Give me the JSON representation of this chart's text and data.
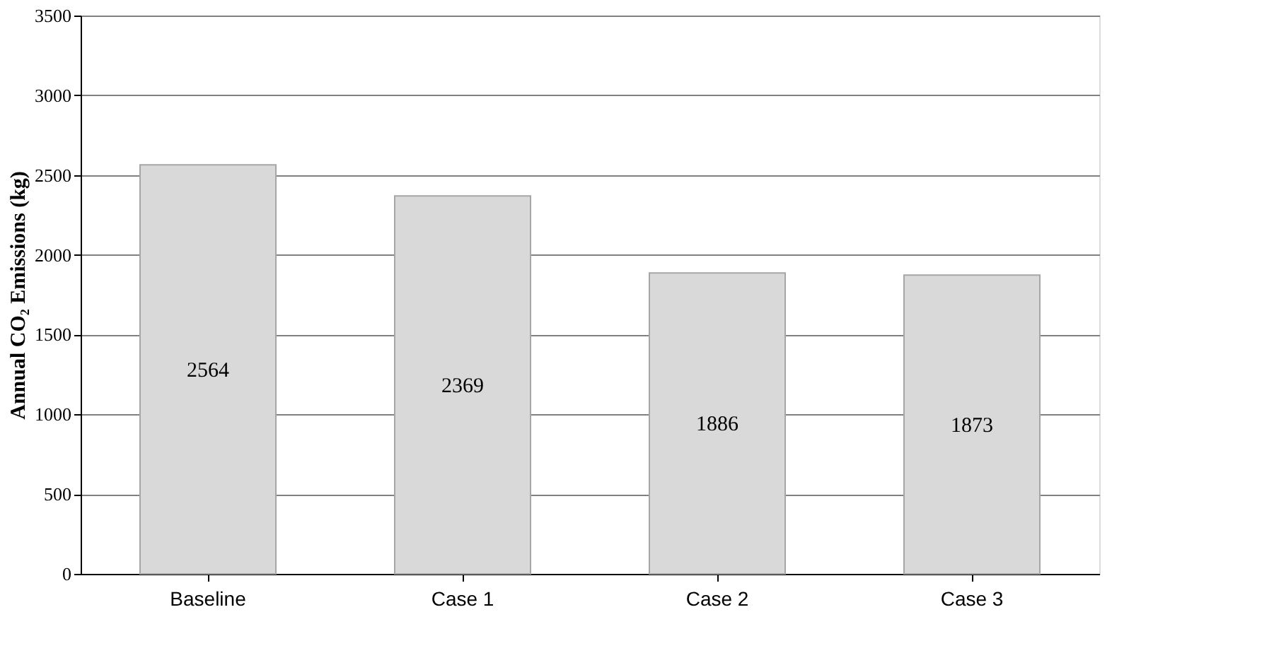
{
  "chart_data": {
    "type": "bar",
    "categories": [
      "Baseline",
      "Case 1",
      "Case 2",
      "Case 3"
    ],
    "values": [
      2564,
      2369,
      1886,
      1873
    ],
    "color": "#d9d9d9",
    "ylabel": "Annual CO₂ Emissions (kg)",
    "ylim": [
      0,
      3500
    ],
    "yticks": [
      0,
      500,
      1000,
      1500,
      2000,
      2500,
      3000,
      3500
    ],
    "grid": "y",
    "data_labels": true
  }
}
